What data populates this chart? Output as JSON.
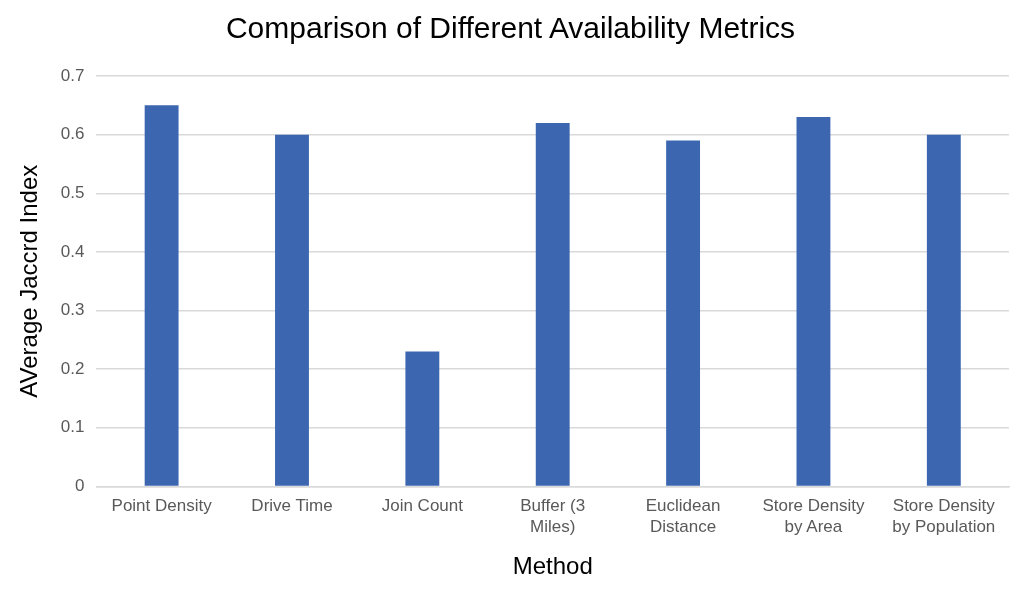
{
  "chart_data": {
    "type": "bar",
    "title": "Comparison of Different Availability Metrics",
    "xlabel": "Method",
    "ylabel": "AVerage Jaccrd Index",
    "categories": [
      "Point Density",
      "Drive Time",
      "Join Count",
      "Buffer (3 Miles)",
      "Euclidean Distance",
      "Store Density by Area",
      "Store Density by Population"
    ],
    "values": [
      0.65,
      0.6,
      0.23,
      0.62,
      0.59,
      0.63,
      0.6
    ],
    "color": "#3d66b0",
    "ylim": [
      0,
      0.7
    ],
    "yticks": [
      0,
      0.1,
      0.2,
      0.3,
      0.4,
      0.5,
      0.6,
      0.7
    ],
    "grid": "y",
    "legend": false
  }
}
